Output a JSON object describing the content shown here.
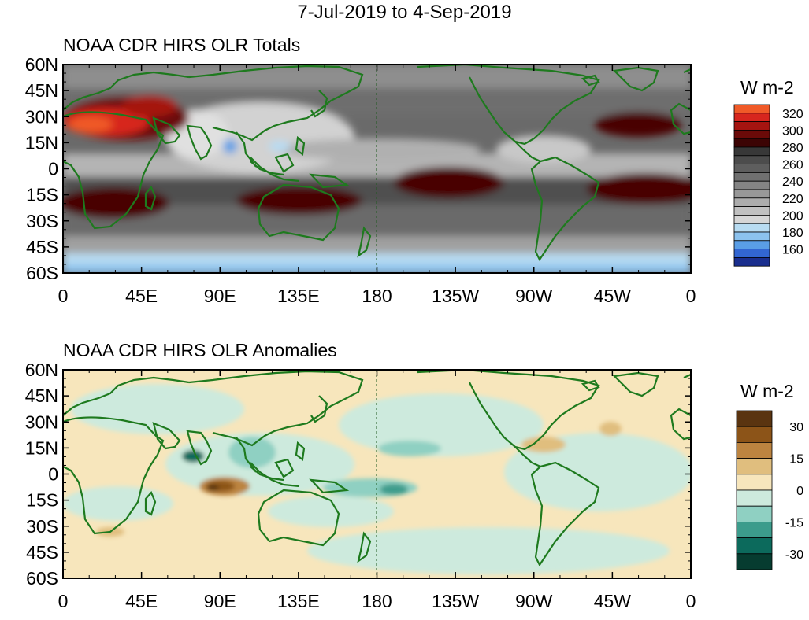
{
  "header": {
    "title": "7-Jul-2019 to 4-Sep-2019"
  },
  "panels": [
    {
      "id": "totals",
      "title": "NOAA CDR HIRS OLR Totals",
      "lat_labels": [
        "60N",
        "45N",
        "30N",
        "15N",
        "0",
        "15S",
        "30S",
        "45S",
        "60S"
      ],
      "lon_labels": [
        "0",
        "45E",
        "90E",
        "135E",
        "180",
        "135W",
        "90W",
        "45W",
        "0"
      ],
      "units": "W m-2",
      "colorbar": {
        "labels": [
          "320",
          "300",
          "280",
          "260",
          "240",
          "220",
          "200",
          "180",
          "160"
        ],
        "colors": [
          "#f05a28",
          "#d7261e",
          "#a51410",
          "#6b0a08",
          "#3c0404",
          "#383838",
          "#4c4c4c",
          "#5e5e5e",
          "#707070",
          "#848484",
          "#989898",
          "#acacac",
          "#c0c0c0",
          "#d6d6d6",
          "#b8dcf2",
          "#8cc2ee",
          "#5a9ee6",
          "#3266d2",
          "#1a2e8e"
        ]
      }
    },
    {
      "id": "anomalies",
      "title": "NOAA CDR HIRS OLR Anomalies",
      "lat_labels": [
        "60N",
        "45N",
        "30N",
        "15N",
        "0",
        "15S",
        "30S",
        "45S",
        "60S"
      ],
      "lon_labels": [
        "0",
        "45E",
        "90E",
        "135E",
        "180",
        "135W",
        "90W",
        "45W",
        "0"
      ],
      "units": "W m-2",
      "colorbar": {
        "labels": [
          "30",
          "15",
          "0",
          "-15",
          "-30"
        ],
        "colors": [
          "#5a3410",
          "#8c5418",
          "#bc8440",
          "#e0be7e",
          "#f7e6bc",
          "#cdeadd",
          "#8fd0c2",
          "#3c9c8c",
          "#0c6a5c",
          "#063c30"
        ]
      }
    }
  ]
}
